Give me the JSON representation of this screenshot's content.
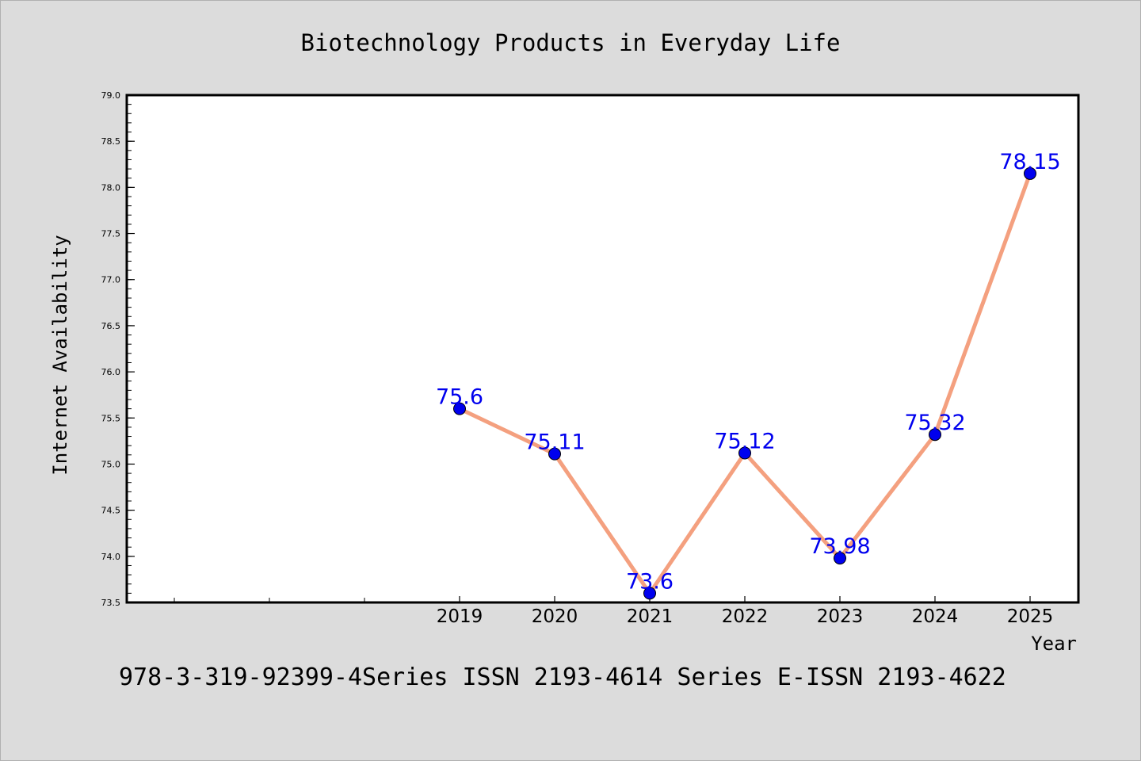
{
  "chart_data": {
    "type": "line",
    "title": "Biotechnology Products in Everyday Life",
    "xlabel": "Year",
    "ylabel": "Internet Availability",
    "footer": "978-3-319-92399-4Series ISSN 2193-4614 Series E-ISSN 2193-4622",
    "x": [
      "2019",
      "2020",
      "2021",
      "2022",
      "2023",
      "2024",
      "2025"
    ],
    "series": [
      {
        "values": [
          75.6,
          75.11,
          73.6,
          75.12,
          73.98,
          75.32,
          78.15
        ],
        "data_labels": [
          "75.6",
          "75.11",
          "73.6",
          "75.12",
          "73.98",
          "75.32",
          "78.15"
        ]
      }
    ],
    "ylim": [
      73.5,
      79.0
    ],
    "yticks": [
      "73.5",
      "74.0",
      "74.5",
      "75.0",
      "75.5",
      "76.0",
      "76.5",
      "77.0",
      "77.5",
      "78.0",
      "78.5",
      "79.0"
    ],
    "grid": false,
    "colors": {
      "line": "#f4a07f",
      "marker": "#0000ee",
      "label": "#0000ee",
      "background": "#dcdcdc",
      "plot_bg": "#ffffff"
    }
  }
}
